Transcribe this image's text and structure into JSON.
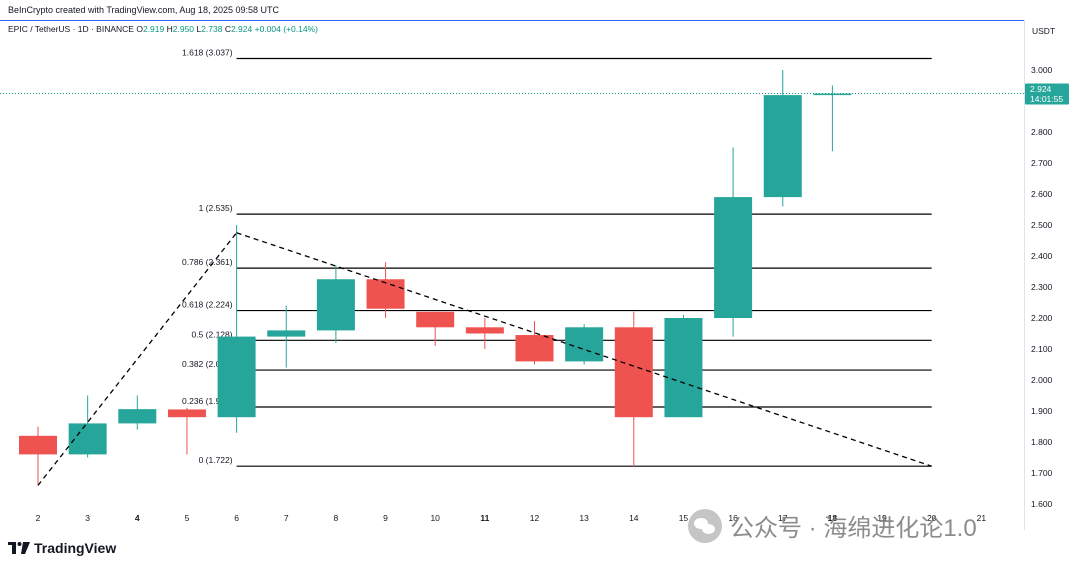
{
  "header": {
    "credit": "BeInCrypto created with TradingView.com, Aug 18, 2025 09:58 UTC",
    "symbol": "EPIC / TetherUS · 1D · BINANCE",
    "o_label": "O",
    "o_value": "2.919",
    "h_label": "H",
    "h_value": "2.950",
    "l_label": "L",
    "l_value": "2.738",
    "c_label": "C",
    "c_value": "2.924",
    "change": "+0.004 (+0.14%)",
    "currency": "USDT"
  },
  "price_tag": {
    "price": "2.924",
    "countdown": "14:01:55"
  },
  "branding": {
    "logo_text": "TradingView"
  },
  "watermark": {
    "text": "公众号 · 海绵进化论1.0"
  },
  "colors": {
    "up": "#26a69a",
    "down": "#ef5350",
    "axis_text": "#131722",
    "price_line": "#089981"
  },
  "chart_data": {
    "type": "candlestick",
    "x_labels": [
      "2",
      "3",
      "4",
      "5",
      "6",
      "7",
      "8",
      "9",
      "10",
      "11",
      "12",
      "13",
      "14",
      "15",
      "16",
      "17",
      "18",
      "19",
      "20",
      "21"
    ],
    "x_labels_bold": [
      "4",
      "11",
      "18"
    ],
    "y_ticks": [
      1.6,
      1.7,
      1.8,
      1.9,
      2.0,
      2.1,
      2.2,
      2.3,
      2.4,
      2.5,
      2.6,
      2.7,
      2.8,
      2.9,
      3.0
    ],
    "ylim": [
      1.58,
      3.13
    ],
    "candles": [
      {
        "x": "2",
        "o": 1.82,
        "h": 1.85,
        "l": 1.66,
        "c": 1.76
      },
      {
        "x": "3",
        "o": 1.76,
        "h": 1.95,
        "l": 1.75,
        "c": 1.86
      },
      {
        "x": "4",
        "o": 1.86,
        "h": 1.95,
        "l": 1.84,
        "c": 1.906
      },
      {
        "x": "5",
        "o": 1.905,
        "h": 1.91,
        "l": 1.76,
        "c": 1.88
      },
      {
        "x": "6",
        "o": 1.88,
        "h": 2.5,
        "l": 1.83,
        "c": 2.14
      },
      {
        "x": "7",
        "o": 2.14,
        "h": 2.24,
        "l": 2.04,
        "c": 2.16
      },
      {
        "x": "8",
        "o": 2.16,
        "h": 2.37,
        "l": 2.12,
        "c": 2.325
      },
      {
        "x": "9",
        "o": 2.325,
        "h": 2.38,
        "l": 2.2,
        "c": 2.23
      },
      {
        "x": "10",
        "o": 2.22,
        "h": 2.22,
        "l": 2.11,
        "c": 2.17
      },
      {
        "x": "11",
        "o": 2.17,
        "h": 2.2,
        "l": 2.1,
        "c": 2.15
      },
      {
        "x": "12",
        "o": 2.145,
        "h": 2.19,
        "l": 2.05,
        "c": 2.06
      },
      {
        "x": "13",
        "o": 2.06,
        "h": 2.18,
        "l": 2.05,
        "c": 2.17
      },
      {
        "x": "14",
        "o": 2.17,
        "h": 2.22,
        "l": 1.72,
        "c": 1.88
      },
      {
        "x": "15",
        "o": 1.88,
        "h": 2.21,
        "l": 1.88,
        "c": 2.2
      },
      {
        "x": "16",
        "o": 2.2,
        "h": 2.75,
        "l": 2.14,
        "c": 2.59
      },
      {
        "x": "17",
        "o": 2.59,
        "h": 3.0,
        "l": 2.56,
        "c": 2.919
      },
      {
        "x": "18",
        "o": 2.919,
        "h": 2.95,
        "l": 2.738,
        "c": 2.924
      }
    ],
    "fib_levels": [
      {
        "label": "1.618 (3.037)",
        "value": 3.037
      },
      {
        "label": "1 (2.535)",
        "value": 2.535
      },
      {
        "label": "0.786 (2.361)",
        "value": 2.361
      },
      {
        "label": "0.618 (2.224)",
        "value": 2.224
      },
      {
        "label": "0.5 (2.128)",
        "value": 2.128
      },
      {
        "label": "0.382 (2.032)",
        "value": 2.032
      },
      {
        "label": "0.236 (1.913)",
        "value": 1.913
      },
      {
        "label": "0 (1.722)",
        "value": 1.722
      }
    ],
    "trend_lines": [
      {
        "from": {
          "x": "2",
          "y": 1.66
        },
        "to": {
          "x": "6",
          "y": 2.475
        }
      },
      {
        "from": {
          "x": "6",
          "y": 2.475
        },
        "to": {
          "x": "20",
          "y": 1.722
        }
      }
    ],
    "current_price": 2.924
  }
}
